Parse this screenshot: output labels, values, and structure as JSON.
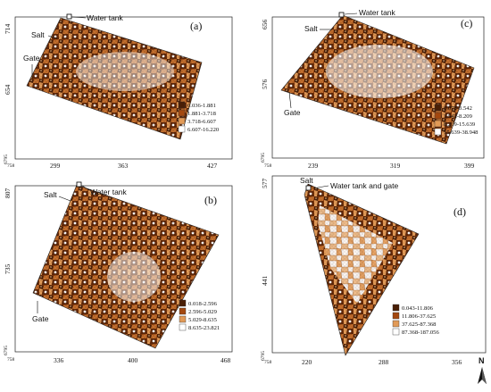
{
  "colors": {
    "c1": "#4a1f06",
    "c2": "#a3480f",
    "c3": "#e19a57",
    "c4": "#ffffff"
  },
  "north_label": "N",
  "panels": [
    {
      "id": "a",
      "letter": "(a)",
      "labels": {
        "water": "Water tank",
        "salt": "Salt",
        "gate": "Gate"
      },
      "x_ticks": [
        "299",
        "363",
        "427"
      ],
      "x_origin": "758",
      "y_ticks": [
        "714",
        "654"
      ],
      "y_origin": "6795",
      "legend": [
        "0.036-1.881",
        "1.881-3.718",
        "3.718-6.607",
        "6.607-16.220"
      ]
    },
    {
      "id": "b",
      "letter": "(b)",
      "labels": {
        "water": "Water tank",
        "salt": "Salt",
        "gate": "Gate"
      },
      "x_ticks": [
        "336",
        "400",
        "468"
      ],
      "x_origin": "758",
      "y_ticks": [
        "807",
        "735"
      ],
      "y_origin": "6795",
      "legend": [
        "0.018-2.596",
        "2.596-5.029",
        "5.029-8.635",
        "8.635-23.821"
      ]
    },
    {
      "id": "c",
      "letter": "(c)",
      "labels": {
        "water": "Water tank",
        "salt": "Salt",
        "gate": "Gate"
      },
      "x_ticks": [
        "239",
        "319",
        "399"
      ],
      "x_origin": "758",
      "y_ticks": [
        "656",
        "576"
      ],
      "y_origin": "6795",
      "legend": [
        "0.078-3.542",
        "3.542-8.209",
        "8.209-15.639",
        "15.639-38.948"
      ]
    },
    {
      "id": "d",
      "letter": "(d)",
      "labels": {
        "water": "Water tank and gate",
        "salt": "Salt"
      },
      "x_ticks": [
        "220",
        "288",
        "356"
      ],
      "x_origin": "758",
      "y_ticks": [
        "577",
        "441"
      ],
      "y_origin": "6795",
      "legend": [
        "0.043-11.806",
        "11.806-37.625",
        "37.625-87.368",
        "87.368-187.056"
      ]
    }
  ]
}
